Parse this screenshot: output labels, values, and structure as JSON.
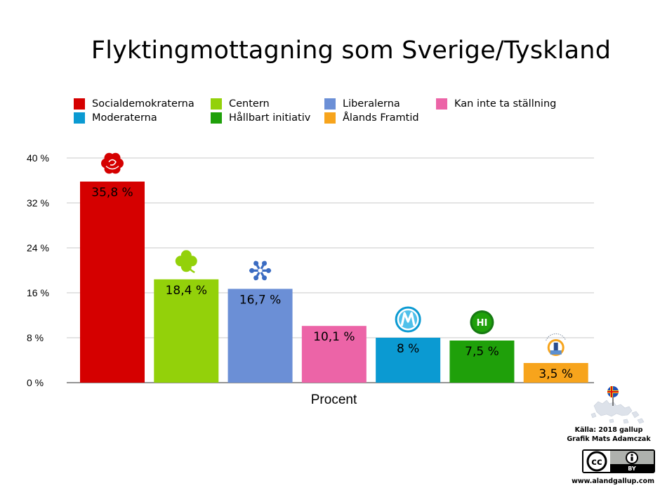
{
  "title": "Flyktingmottagning som Sverige/Tyskland",
  "legend": [
    {
      "label": "Socialdemokraterna",
      "color": "#d50000"
    },
    {
      "label": "Centern",
      "color": "#93d10a"
    },
    {
      "label": "Liberalerna",
      "color": "#6b8fd6"
    },
    {
      "label": "Kan inte ta ställning",
      "color": "#ec64a7"
    },
    {
      "label": "Moderaterna",
      "color": "#0b9ad2"
    },
    {
      "label": "Hållbart initiativ",
      "color": "#1fa00a"
    },
    {
      "label": "Ålands Framtid",
      "color": "#f7a41c"
    }
  ],
  "chart_data": {
    "type": "bar",
    "categories": [
      "Socialdemokraterna",
      "Centern",
      "Liberalerna",
      "Kan inte ta ställning",
      "Moderaterna",
      "Hållbart initiativ",
      "Ålands Framtid"
    ],
    "values": [
      35.8,
      18.4,
      16.7,
      10.1,
      8,
      7.5,
      3.5
    ],
    "value_labels": [
      "35,8 %",
      "18,4 %",
      "16,7 %",
      "10,1 %",
      "8 %",
      "7,5 %",
      "3,5 %"
    ],
    "colors": [
      "#d50000",
      "#93d10a",
      "#6b8fd6",
      "#ec64a7",
      "#0b9ad2",
      "#1fa00a",
      "#f7a41c"
    ],
    "ylim": [
      0,
      40
    ],
    "yticks": [
      0,
      8,
      16,
      24,
      32,
      40
    ],
    "ytick_labels": [
      "0 %",
      "8 %",
      "16 %",
      "24 %",
      "32 %",
      "40 %"
    ],
    "xlabel": "Procent",
    "grid": true,
    "legend_position": "top"
  },
  "party_icons": [
    "rose-icon",
    "clover-icon",
    "snowflake-icon",
    "",
    "m-logo-icon",
    "hi-logo-icon",
    "alands-framtid-logo-icon"
  ],
  "hi_logo_text": "HI",
  "credits": {
    "line1": "Källa: 2018 gallup",
    "line2": "Grafik Mats Adamczak",
    "cc_text": "cc",
    "by_text": "BY",
    "website": "www.alandgallup.com"
  }
}
